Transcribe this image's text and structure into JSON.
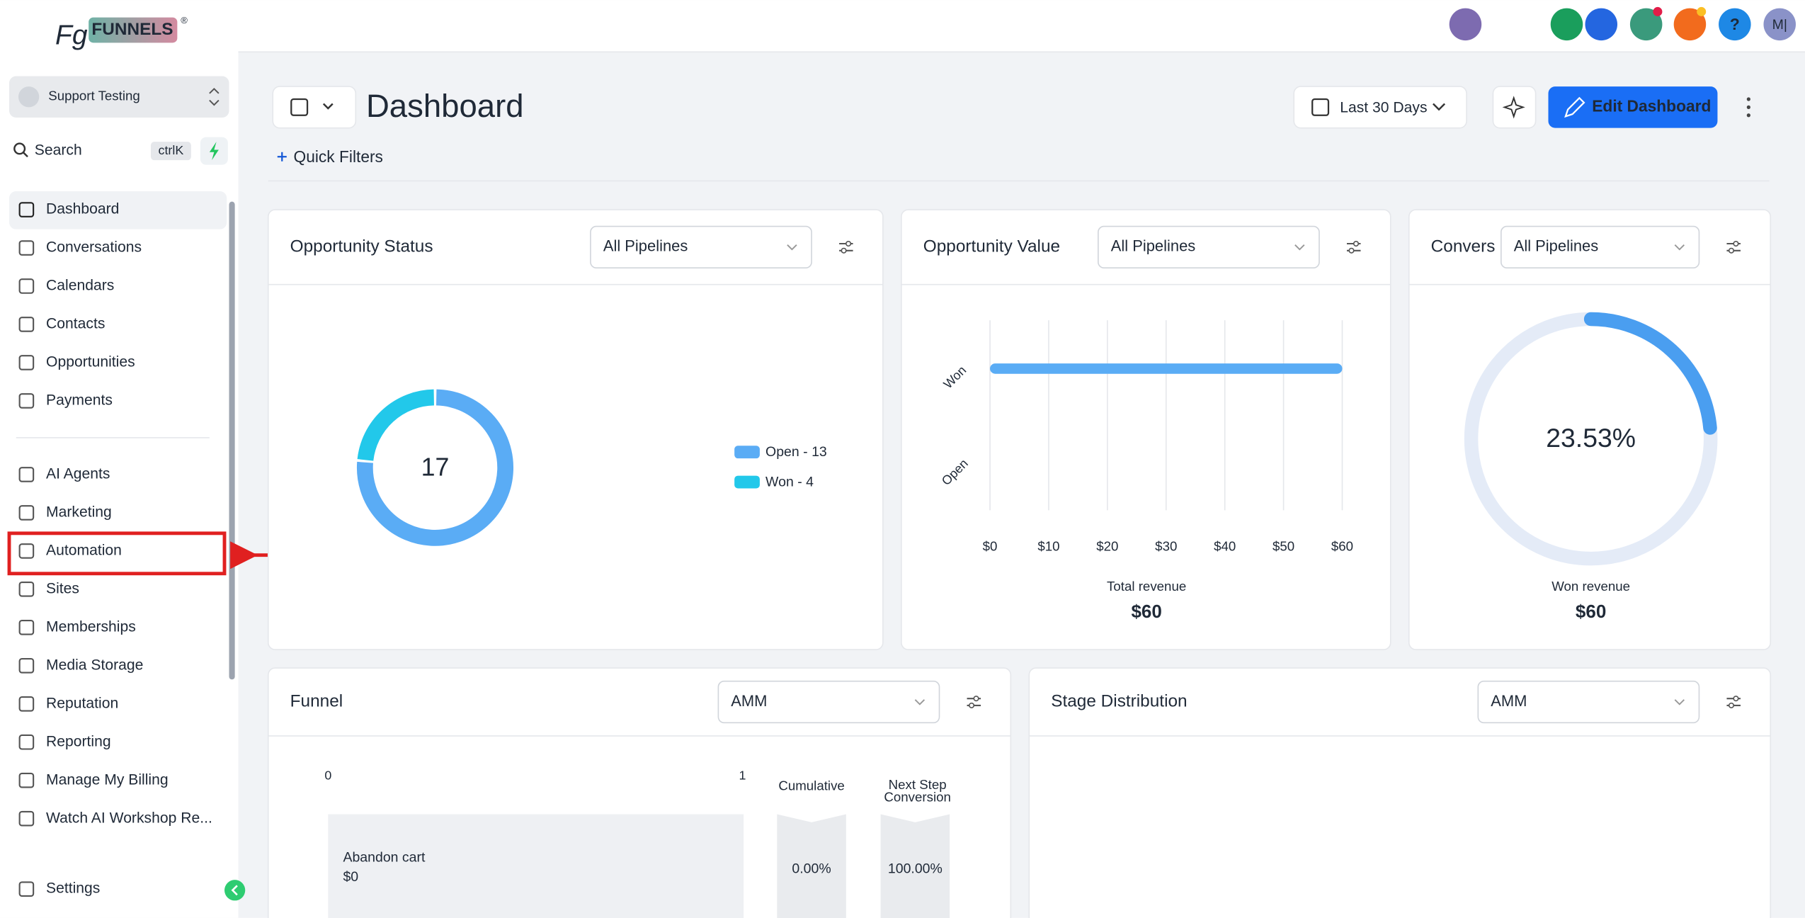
{
  "logo": {
    "mark": "Fg",
    "name": "FUNNELS",
    "reg": "®"
  },
  "account": "Support Testing",
  "search": {
    "placeholder": "Search",
    "shortcut": "ctrlK"
  },
  "nav": [
    "Dashboard",
    "Conversations",
    "Calendars",
    "Contacts",
    "Opportunities",
    "Payments"
  ],
  "nav2": [
    "AI Agents",
    "Marketing",
    "Automation",
    "Sites",
    "Memberships",
    "Media Storage",
    "Reputation",
    "Reporting",
    "Manage My Billing",
    "Watch AI Workshop Re..."
  ],
  "settings": "Settings",
  "topbar": {
    "help": "?",
    "avatar": "M|"
  },
  "header": {
    "title": "Dashboard",
    "date_range": "Last 30 Days",
    "edit": "Edit Dashboard",
    "quick_filters": "Quick Filters"
  },
  "widgets": {
    "opportunity_status": {
      "title": "Opportunity Status",
      "filter": "All Pipelines",
      "chart_data": {
        "type": "donut",
        "total": 17,
        "values": [
          13,
          4
        ],
        "legend_labels": [
          "Open - 13",
          "Won - 4"
        ],
        "colors": [
          "#5aacf5",
          "#22c8ea"
        ]
      }
    },
    "opportunity_value": {
      "title": "Opportunity Value",
      "filter": "All Pipelines",
      "chart_data": {
        "type": "bar",
        "orientation": "horizontal",
        "categories": [
          "Won",
          "Open"
        ],
        "values": [
          60,
          0
        ],
        "color": "#5aacf5",
        "xlim": [
          0,
          60
        ],
        "xticks": [
          {
            "value": 0,
            "label": "$0"
          },
          {
            "value": 10,
            "label": "$10"
          },
          {
            "value": 20,
            "label": "$20"
          },
          {
            "value": 30,
            "label": "$30"
          },
          {
            "value": 40,
            "label": "$40"
          },
          {
            "value": 50,
            "label": "$50"
          },
          {
            "value": 60,
            "label": "$60"
          }
        ],
        "grid": true,
        "footer_label": "Total revenue",
        "footer_value": "$60"
      }
    },
    "conversion": {
      "title": "Convers",
      "filter": "All Pipelines",
      "chart_data": {
        "type": "gauge",
        "value": 23.53,
        "value_label": "23.53%",
        "max": 100,
        "color": "#4a9ef0",
        "track_color": "#e4ebf7",
        "footer_label": "Won revenue",
        "footer_value": "$60"
      }
    },
    "funnel": {
      "title": "Funnel",
      "filter": "AMM",
      "axis": [
        "0",
        "1"
      ],
      "columns": [
        "Cumulative",
        "Next Step Conversion"
      ],
      "rows": [
        {
          "stage": "Abandon cart",
          "amount": "$0",
          "cumulative": "0.00%",
          "next_step": "100.00%"
        }
      ]
    },
    "stage_distribution": {
      "title": "Stage Distribution",
      "filter": "AMM"
    }
  }
}
